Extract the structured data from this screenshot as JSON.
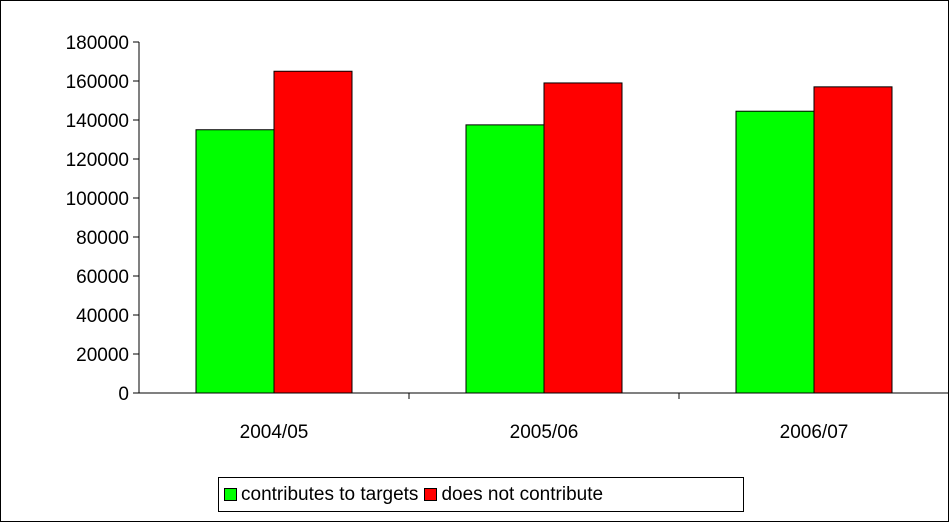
{
  "chart_data": {
    "type": "bar",
    "title": "",
    "xlabel": "",
    "ylabel": "",
    "categories": [
      "2004/05",
      "2005/06",
      "2006/07"
    ],
    "series": [
      {
        "name": "contributes to targets",
        "color": "#00ff00",
        "values": [
          135000,
          137500,
          144500
        ]
      },
      {
        "name": "does not contribute",
        "color": "#ff0000",
        "values": [
          165000,
          159000,
          157000
        ]
      }
    ],
    "ylim": [
      0,
      180000
    ],
    "yticks": [
      0,
      20000,
      40000,
      60000,
      80000,
      100000,
      120000,
      140000,
      160000,
      180000
    ],
    "grid": false,
    "legend_position": "bottom"
  }
}
